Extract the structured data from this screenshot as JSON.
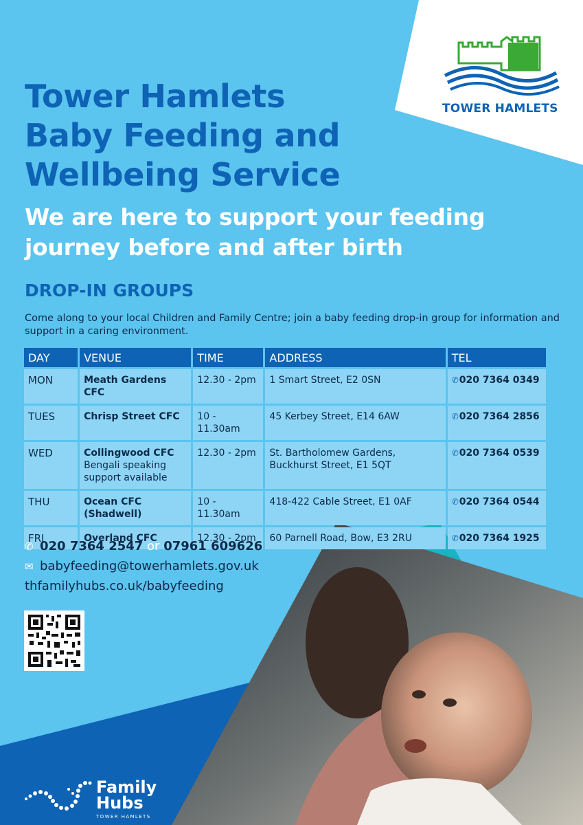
{
  "title": {
    "line1": "Tower Hamlets",
    "line2": "Baby Feeding and",
    "line3": "Wellbeing Service"
  },
  "subtitle": {
    "line1": "We are here to support your feeding",
    "line2": "journey before and after birth"
  },
  "section_heading": "DROP-IN GROUPS",
  "intro": "Come along to your local Children and Family Centre; join a baby feeding drop-in group for information and support in a caring environment.",
  "table": {
    "headers": [
      "DAY",
      "VENUE",
      "TIME",
      "ADDRESS",
      "TEL"
    ],
    "rows": [
      {
        "day": "MON",
        "venue": "Meath Gardens CFC",
        "venue_note": "",
        "time": "12.30 - 2pm",
        "address": "1 Smart Street, E2 0SN",
        "tel": "020 7364 0349"
      },
      {
        "day": "TUES",
        "venue": "Chrisp Street CFC",
        "venue_note": "",
        "time": "10 - 11.30am",
        "address": "45 Kerbey Street, E14 6AW",
        "tel": "020 7364 2856"
      },
      {
        "day": "WED",
        "venue": "Collingwood CFC",
        "venue_note": "Bengali speaking support available",
        "time": "12.30 - 2pm",
        "address": "St. Bartholomew Gardens, Buckhurst Street, E1 5QT",
        "tel": "020 7364 0539"
      },
      {
        "day": "THU",
        "venue": "Ocean CFC (Shadwell)",
        "venue_note": "",
        "time": "10 - 11.30am",
        "address": "418-422 Cable Street, E1 0AF",
        "tel": "020 7364 0544"
      },
      {
        "day": "FRI",
        "venue": "Overland CFC",
        "venue_note": "",
        "time": "12.30 - 2pm",
        "address": "60 Parnell Road, Bow, E3 2RU",
        "tel": "020 7364 1925"
      }
    ]
  },
  "contact": {
    "phone1": "020 7364 2547",
    "or_text": "or",
    "phone2": "07961 609626",
    "email": "babyfeeding@towerhamlets.gov.uk",
    "website": "thfamilyhubs.co.uk/babyfeeding"
  },
  "logo": {
    "text": "TOWER HAMLETS",
    "icon": "castle-waves-icon"
  },
  "family_hubs": {
    "name_line1": "Family",
    "name_line2": "Hubs",
    "sub": "TOWER HAMLETS"
  },
  "colors": {
    "background": "#5bc4ef",
    "primary_blue": "#0e63b4",
    "teal": "#1ab3c4",
    "logo_green": "#3aa935"
  }
}
